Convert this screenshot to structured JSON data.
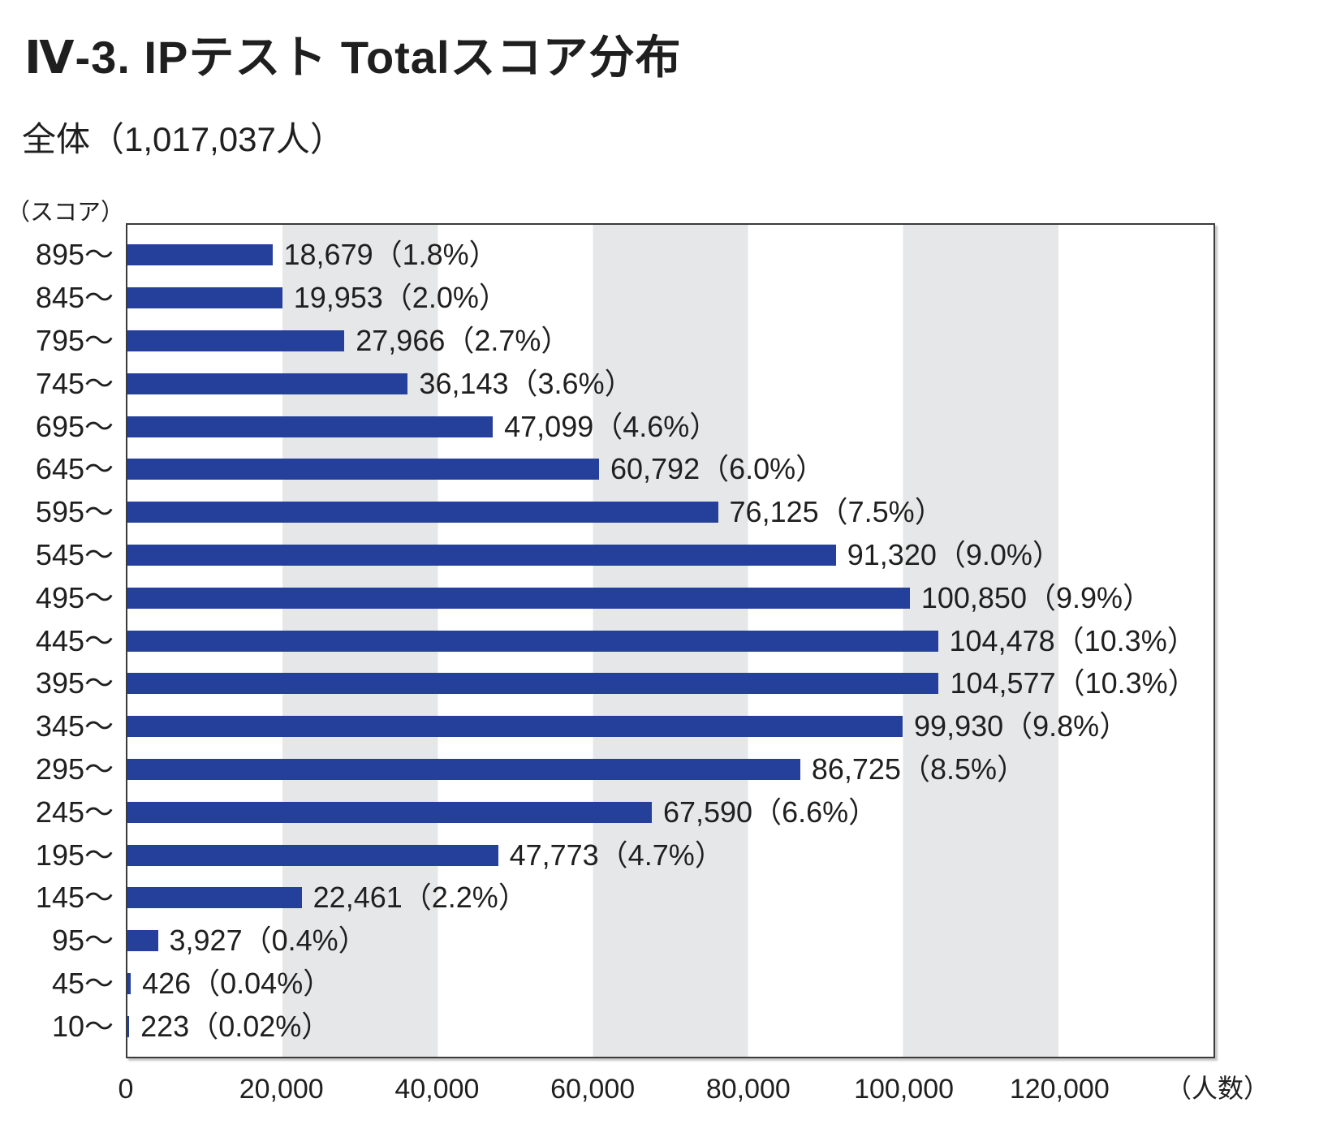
{
  "page": {
    "title": "Ⅳ-3. IPテスト Totalスコア分布",
    "subtitle": "全体（1,017,037人）",
    "y_axis_unit": "（スコア）",
    "x_axis_unit": "（人数）"
  },
  "chart_data": {
    "type": "bar",
    "orientation": "horizontal",
    "title": "IPテスト Totalスコア分布",
    "subtitle": "全体（1,017,037人）",
    "total_people": 1017037,
    "categories": [
      "895〜",
      "845〜",
      "795〜",
      "745〜",
      "695〜",
      "645〜",
      "595〜",
      "545〜",
      "495〜",
      "445〜",
      "395〜",
      "345〜",
      "295〜",
      "245〜",
      "195〜",
      "145〜",
      "95〜",
      "45〜",
      "10〜"
    ],
    "values": [
      18679,
      19953,
      27966,
      36143,
      47099,
      60792,
      76125,
      91320,
      100850,
      104478,
      104577,
      99930,
      86725,
      67590,
      47773,
      22461,
      3927,
      426,
      223
    ],
    "value_labels": [
      "18,679（1.8%）",
      "19,953（2.0%）",
      "27,966（2.7%）",
      "36,143（3.6%）",
      "47,099（4.6%）",
      "60,792（6.0%）",
      "76,125（7.5%）",
      "91,320（9.0%）",
      "100,850（9.9%）",
      "104,478（10.3%）",
      "104,577（10.3%）",
      "99,930（9.8%）",
      "86,725（8.5%）",
      "67,590（6.6%）",
      "47,773（4.7%）",
      "22,461（2.2%）",
      "3,927（0.4%）",
      "426（0.04%）",
      "223（0.02%）"
    ],
    "percentages": [
      1.8,
      2.0,
      2.7,
      3.6,
      4.6,
      6.0,
      7.5,
      9.0,
      9.9,
      10.3,
      10.3,
      9.8,
      8.5,
      6.6,
      4.7,
      2.2,
      0.4,
      0.04,
      0.02
    ],
    "xlabel": "（人数）",
    "ylabel": "（スコア）",
    "xlim": [
      0,
      140000
    ],
    "x_ticks": {
      "labels": [
        "0",
        "20,000",
        "40,000",
        "60,000",
        "80,000",
        "100,000",
        "120,000"
      ],
      "values": [
        0,
        20000,
        40000,
        60000,
        80000,
        100000,
        120000
      ]
    },
    "background_bands": [
      [
        20000,
        40000
      ],
      [
        60000,
        80000
      ],
      [
        100000,
        120000
      ]
    ],
    "grid": false,
    "legend": false,
    "colors": {
      "bar": "#24409a",
      "band": "#e6e7e9",
      "plot_border": "#3b3b3b",
      "text": "#1f1f1f",
      "background": "#ffffff"
    }
  }
}
